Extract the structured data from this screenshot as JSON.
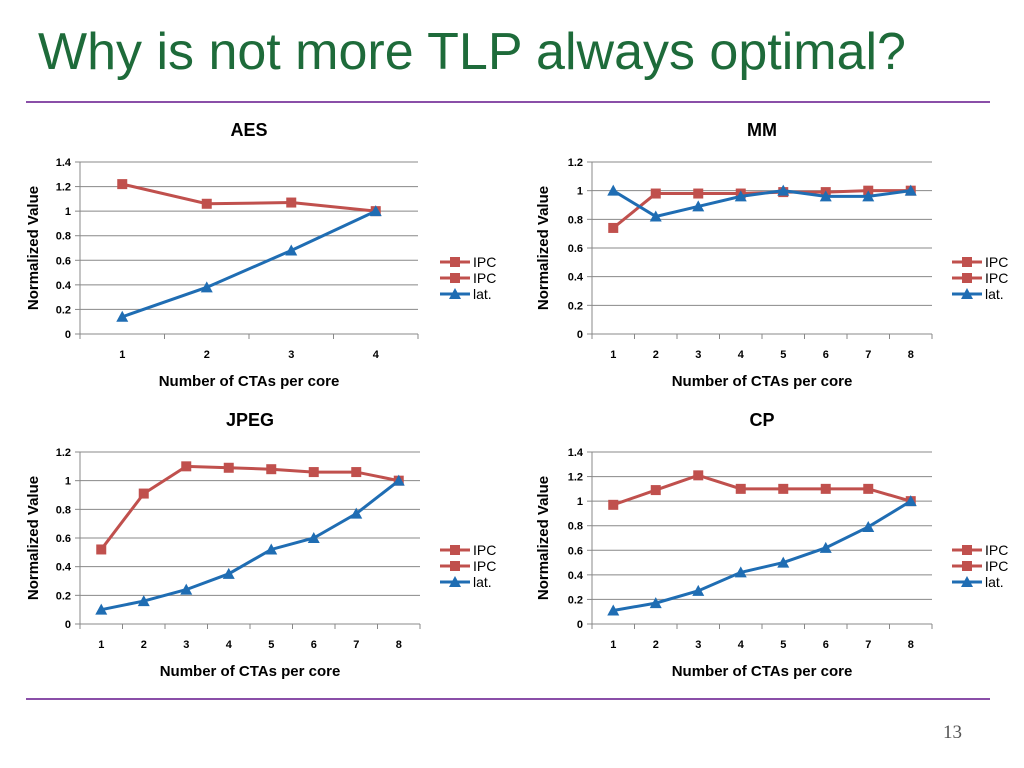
{
  "slide": {
    "title": "Why is not more TLP always optimal?",
    "page_number": "13"
  },
  "colors": {
    "title": "#1e6b3a",
    "rule": "#8a4fa8",
    "grid": "#888888",
    "series": [
      "#c0504d",
      "#c0504d",
      "#1f6db3"
    ]
  },
  "chart_data": [
    {
      "type": "line",
      "title": "AES",
      "xlabel": "Number of CTAs per core",
      "ylabel": "Normalized Value",
      "x": [
        1,
        2,
        3,
        4
      ],
      "ylim": [
        0,
        1.4
      ],
      "yticks": [
        "0",
        "0.2",
        "0.4",
        "0.6",
        "0.8",
        "1",
        "1.2",
        "1.4"
      ],
      "grid": true,
      "legend_position": "right",
      "legend": [
        "IPC",
        "IPC",
        "lat."
      ],
      "series": [
        {
          "name": "IPC",
          "marker": "square",
          "values": [
            1.22,
            1.06,
            1.07,
            1.0
          ]
        },
        {
          "name": "lat.",
          "marker": "triangle",
          "values": [
            0.14,
            0.38,
            0.68,
            1.0
          ]
        }
      ]
    },
    {
      "type": "line",
      "title": "MM",
      "xlabel": "Number of CTAs per core",
      "ylabel": "Normalized Value",
      "x": [
        1,
        2,
        3,
        4,
        5,
        6,
        7,
        8
      ],
      "ylim": [
        0,
        1.2
      ],
      "yticks": [
        "0",
        "0.2",
        "0.4",
        "0.6",
        "0.8",
        "1",
        "1.2"
      ],
      "grid": true,
      "legend_position": "right",
      "legend": [
        "IPC",
        "IPC",
        "lat."
      ],
      "series": [
        {
          "name": "IPC",
          "marker": "square",
          "values": [
            0.74,
            0.98,
            0.98,
            0.98,
            0.99,
            0.99,
            1.0,
            1.0
          ]
        },
        {
          "name": "lat.",
          "marker": "triangle",
          "values": [
            1.0,
            0.82,
            0.89,
            0.96,
            1.0,
            0.96,
            0.96,
            1.0
          ]
        }
      ]
    },
    {
      "type": "line",
      "title": "JPEG",
      "xlabel": "Number of CTAs per core",
      "ylabel": "Normalized Value",
      "x": [
        1,
        2,
        3,
        4,
        5,
        6,
        7,
        8
      ],
      "ylim": [
        0,
        1.2
      ],
      "yticks": [
        "0",
        "0.2",
        "0.4",
        "0.6",
        "0.8",
        "1",
        "1.2"
      ],
      "grid": true,
      "legend_position": "right",
      "legend": [
        "IPC",
        "IPC",
        "lat."
      ],
      "series": [
        {
          "name": "IPC",
          "marker": "square",
          "values": [
            0.52,
            0.91,
            1.1,
            1.09,
            1.08,
            1.06,
            1.06,
            1.0
          ]
        },
        {
          "name": "lat.",
          "marker": "triangle",
          "values": [
            0.1,
            0.16,
            0.24,
            0.35,
            0.52,
            0.6,
            0.77,
            1.0
          ]
        }
      ]
    },
    {
      "type": "line",
      "title": "CP",
      "xlabel": "Number of CTAs per core",
      "ylabel": "Normalized Value",
      "x": [
        1,
        2,
        3,
        4,
        5,
        6,
        7,
        8
      ],
      "ylim": [
        0,
        1.4
      ],
      "yticks": [
        "0",
        "0.2",
        "0.4",
        "0.6",
        "0.8",
        "1",
        "1.2",
        "1.4"
      ],
      "grid": true,
      "legend_position": "right",
      "legend": [
        "IPC",
        "IPC",
        "lat."
      ],
      "series": [
        {
          "name": "IPC",
          "marker": "square",
          "values": [
            0.97,
            1.09,
            1.21,
            1.1,
            1.1,
            1.1,
            1.1,
            1.0
          ]
        },
        {
          "name": "lat.",
          "marker": "triangle",
          "values": [
            0.11,
            0.17,
            0.27,
            0.42,
            0.5,
            0.62,
            0.79,
            1.0
          ]
        }
      ]
    }
  ]
}
